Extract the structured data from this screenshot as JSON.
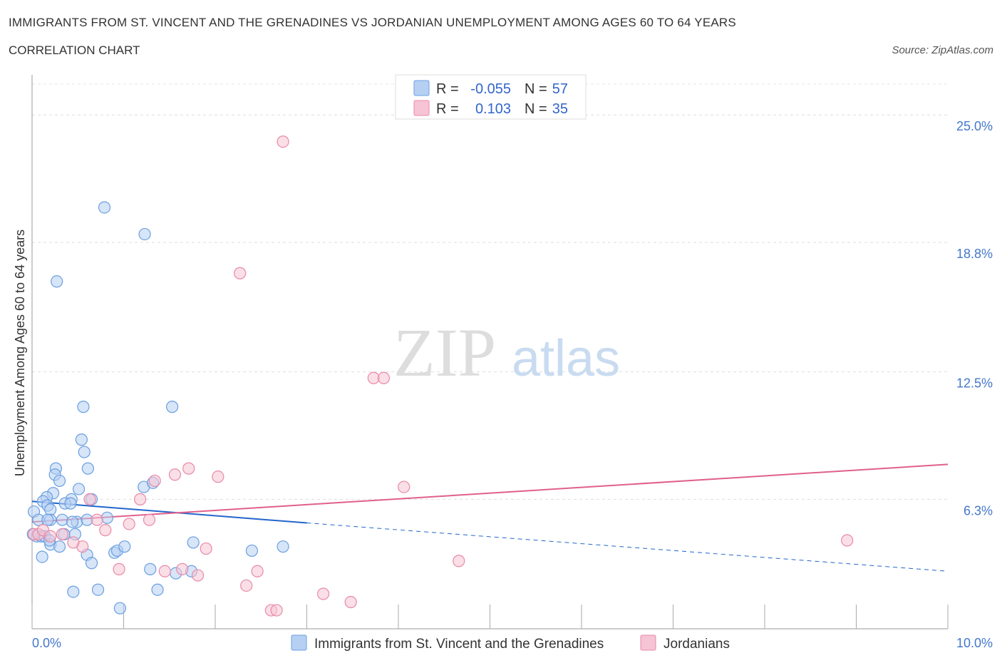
{
  "title": "IMMIGRANTS FROM ST. VINCENT AND THE GRENADINES VS JORDANIAN UNEMPLOYMENT AMONG AGES 60 TO 64 YEARS",
  "subtitle": "CORRELATION CHART",
  "source": "Source: ZipAtlas.com",
  "watermark": {
    "zip": "ZIP",
    "atlas": "atlas"
  },
  "colors": {
    "blue": "#6a9fe0",
    "blue_fill": "#b6d0f3",
    "blue_line": "#2266cc",
    "pink": "#e889a8",
    "pink_fill": "#f6c4d4",
    "pink_line": "#e0608a",
    "axis_text": "#4477cc"
  },
  "legend": {
    "rows": [
      {
        "r_label": "R =",
        "r_value": "-0.055",
        "n_label": "N =",
        "n_value": "57"
      },
      {
        "r_label": "R =",
        "r_value": "0.103",
        "n_label": "N =",
        "n_value": "35"
      }
    ]
  },
  "chart_data": {
    "type": "scatter",
    "title": "IMMIGRANTS FROM ST. VINCENT AND THE GRENADINES VS JORDANIAN UNEMPLOYMENT AMONG AGES 60 TO 64 YEARS",
    "ylabel": "Unemployment Among Ages 60 to 64 years",
    "xlabel": "",
    "xlim": [
      0,
      10
    ],
    "ylim": [
      0,
      26.5
    ],
    "x_tick_labels": [
      "0.0%",
      "10.0%"
    ],
    "y_tick_labels": [
      "25.0%",
      "18.8%",
      "12.5%",
      "6.3%"
    ],
    "y_tick_values": [
      25.0,
      18.8,
      12.5,
      6.3
    ],
    "grid": true,
    "legend_position": "top-center",
    "series": [
      {
        "name": "Immigrants from St. Vincent and the Grenadines",
        "color": "blue",
        "trend": {
          "x": [
            0,
            3
          ],
          "y": [
            6.2,
            5.15
          ],
          "dashed_to": [
            10,
            2.8
          ]
        },
        "points": [
          [
            0.79,
            20.5
          ],
          [
            1.23,
            19.2
          ],
          [
            0.27,
            16.9
          ],
          [
            0.56,
            10.8
          ],
          [
            1.53,
            10.8
          ],
          [
            0.54,
            9.2
          ],
          [
            0.57,
            8.6
          ],
          [
            0.61,
            7.8
          ],
          [
            0.26,
            7.8
          ],
          [
            0.25,
            7.5
          ],
          [
            0.3,
            7.2
          ],
          [
            0.51,
            6.8
          ],
          [
            0.23,
            6.6
          ],
          [
            0.16,
            6.4
          ],
          [
            0.12,
            6.2
          ],
          [
            0.43,
            6.3
          ],
          [
            0.65,
            6.3
          ],
          [
            1.22,
            6.9
          ],
          [
            1.32,
            7.1
          ],
          [
            0.36,
            6.1
          ],
          [
            0.42,
            6.1
          ],
          [
            0.17,
            6.0
          ],
          [
            0.2,
            5.8
          ],
          [
            0.02,
            5.7
          ],
          [
            0.07,
            5.3
          ],
          [
            0.2,
            5.3
          ],
          [
            0.17,
            5.3
          ],
          [
            0.33,
            5.3
          ],
          [
            0.49,
            5.2
          ],
          [
            0.6,
            5.3
          ],
          [
            0.82,
            5.4
          ],
          [
            0.05,
            4.5
          ],
          [
            0.1,
            4.5
          ],
          [
            0.14,
            4.5
          ],
          [
            0.35,
            4.6
          ],
          [
            0.47,
            4.6
          ],
          [
            0.01,
            4.6
          ],
          [
            0.2,
            4.1
          ],
          [
            0.3,
            4.0
          ],
          [
            0.11,
            3.5
          ],
          [
            0.6,
            3.6
          ],
          [
            0.65,
            3.2
          ],
          [
            0.9,
            3.7
          ],
          [
            0.93,
            3.8
          ],
          [
            1.01,
            4.0
          ],
          [
            1.76,
            4.2
          ],
          [
            2.4,
            3.8
          ],
          [
            2.74,
            4.0
          ],
          [
            1.29,
            2.9
          ],
          [
            1.37,
            1.9
          ],
          [
            1.57,
            2.7
          ],
          [
            1.74,
            2.8
          ],
          [
            0.45,
            1.8
          ],
          [
            0.72,
            1.9
          ],
          [
            0.96,
            1.0
          ],
          [
            0.44,
            5.2
          ],
          [
            0.19,
            4.3
          ]
        ]
      },
      {
        "name": "Jordanians",
        "color": "pink",
        "trend": {
          "x": [
            0,
            10
          ],
          "y": [
            5.2,
            8.0
          ]
        },
        "points": [
          [
            2.74,
            23.7
          ],
          [
            2.27,
            17.3
          ],
          [
            3.73,
            12.2
          ],
          [
            3.84,
            12.2
          ],
          [
            1.71,
            7.8
          ],
          [
            1.56,
            7.5
          ],
          [
            2.03,
            7.4
          ],
          [
            1.34,
            7.2
          ],
          [
            4.06,
            6.9
          ],
          [
            0.63,
            6.3
          ],
          [
            1.18,
            6.3
          ],
          [
            0.71,
            5.3
          ],
          [
            1.28,
            5.3
          ],
          [
            1.06,
            5.1
          ],
          [
            0.02,
            4.6
          ],
          [
            0.07,
            4.6
          ],
          [
            0.12,
            4.8
          ],
          [
            0.2,
            4.5
          ],
          [
            0.33,
            4.6
          ],
          [
            0.55,
            4.0
          ],
          [
            0.45,
            4.2
          ],
          [
            0.8,
            4.8
          ],
          [
            1.9,
            3.9
          ],
          [
            4.66,
            3.3
          ],
          [
            8.9,
            4.3
          ],
          [
            0.95,
            2.9
          ],
          [
            1.45,
            2.8
          ],
          [
            1.64,
            2.9
          ],
          [
            1.81,
            2.6
          ],
          [
            2.46,
            2.8
          ],
          [
            2.34,
            2.1
          ],
          [
            3.18,
            1.7
          ],
          [
            3.48,
            1.3
          ],
          [
            2.61,
            0.9
          ],
          [
            2.67,
            0.9
          ]
        ]
      }
    ]
  },
  "bottom_legend": [
    {
      "label": "Immigrants from St. Vincent and the Grenadines",
      "color": "blue"
    },
    {
      "label": "Jordanians",
      "color": "pink"
    }
  ]
}
